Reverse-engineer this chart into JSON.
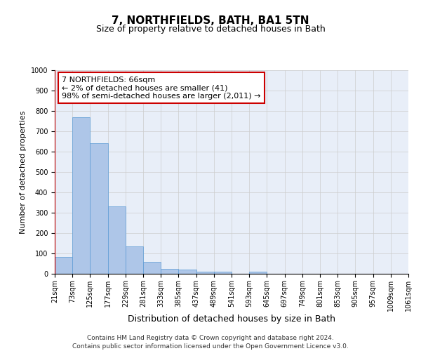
{
  "title": "7, NORTHFIELDS, BATH, BA1 5TN",
  "subtitle": "Size of property relative to detached houses in Bath",
  "xlabel": "Distribution of detached houses by size in Bath",
  "ylabel": "Number of detached properties",
  "bar_values": [
    82,
    770,
    643,
    332,
    135,
    60,
    25,
    20,
    12,
    10,
    0,
    10,
    0,
    0,
    0,
    0,
    0,
    0,
    0,
    0
  ],
  "categories": [
    "21sqm",
    "73sqm",
    "125sqm",
    "177sqm",
    "229sqm",
    "281sqm",
    "333sqm",
    "385sqm",
    "437sqm",
    "489sqm",
    "541sqm",
    "593sqm",
    "645sqm",
    "697sqm",
    "749sqm",
    "801sqm",
    "853sqm",
    "905sqm",
    "957sqm",
    "1009sqm",
    "1061sqm"
  ],
  "bar_color": "#aec6e8",
  "bar_edge_color": "#5b9bd5",
  "highlight_line_color": "#cc0000",
  "annotation_text": "7 NORTHFIELDS: 66sqm\n← 2% of detached houses are smaller (41)\n98% of semi-detached houses are larger (2,011) →",
  "annotation_box_color": "#ffffff",
  "annotation_box_edge_color": "#cc0000",
  "ylim": [
    0,
    1000
  ],
  "yticks": [
    0,
    100,
    200,
    300,
    400,
    500,
    600,
    700,
    800,
    900,
    1000
  ],
  "grid_color": "#cccccc",
  "bg_color": "#e8eef8",
  "footer": "Contains HM Land Registry data © Crown copyright and database right 2024.\nContains public sector information licensed under the Open Government Licence v3.0.",
  "title_fontsize": 11,
  "subtitle_fontsize": 9,
  "xlabel_fontsize": 9,
  "ylabel_fontsize": 8,
  "tick_fontsize": 7,
  "footer_fontsize": 6.5,
  "annotation_fontsize": 8
}
